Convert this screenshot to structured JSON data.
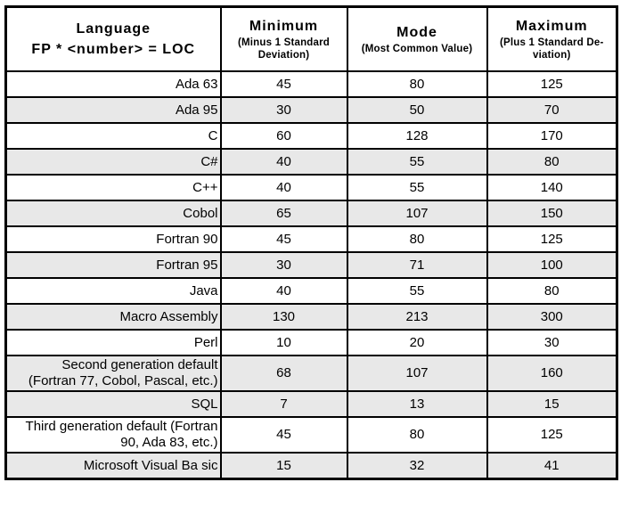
{
  "table": {
    "name": "function-points-to-loc-conversion-table",
    "header": {
      "cols": [
        {
          "title": "Language",
          "sub": "FP * <number> = LOC"
        },
        {
          "title": "Minimum",
          "sub": "(Minus 1 Standard Deviation)"
        },
        {
          "title": "Mode",
          "sub": "(Most Common Value)"
        },
        {
          "title": "Maximum",
          "sub": "(Plus 1 Standard De-viation)"
        }
      ]
    },
    "rows": [
      {
        "language": "Ada 63",
        "minimum": "45",
        "mode": "80",
        "maximum": "125",
        "shaded": false
      },
      {
        "language": "Ada 95",
        "minimum": "30",
        "mode": "50",
        "maximum": "70",
        "shaded": true
      },
      {
        "language": "C",
        "minimum": "60",
        "mode": "128",
        "maximum": "170",
        "shaded": false
      },
      {
        "language": "C#",
        "minimum": "40",
        "mode": "55",
        "maximum": "80",
        "shaded": true
      },
      {
        "language": "C++",
        "minimum": "40",
        "mode": "55",
        "maximum": "140",
        "shaded": false
      },
      {
        "language": "Cobol",
        "minimum": "65",
        "mode": "107",
        "maximum": "150",
        "shaded": true
      },
      {
        "language": "Fortran 90",
        "minimum": "45",
        "mode": "80",
        "maximum": "125",
        "shaded": false
      },
      {
        "language": "Fortran 95",
        "minimum": "30",
        "mode": "71",
        "maximum": "100",
        "shaded": true
      },
      {
        "language": "Java",
        "minimum": "40",
        "mode": "55",
        "maximum": "80",
        "shaded": false
      },
      {
        "language": "Macro Assembly",
        "minimum": "130",
        "mode": "213",
        "maximum": "300",
        "shaded": true
      },
      {
        "language": "Perl",
        "minimum": "10",
        "mode": "20",
        "maximum": "30",
        "shaded": false
      },
      {
        "language": "Second generation default (Fortran 77, Cobol, Pascal, etc.)",
        "minimum": "68",
        "mode": "107",
        "maximum": "160",
        "shaded": true
      },
      {
        "language": "SQL",
        "minimum": "7",
        "mode": "13",
        "maximum": "15",
        "shaded": true
      },
      {
        "language": "Third generation default (Fortran 90, Ada 83, etc.)",
        "minimum": "45",
        "mode": "80",
        "maximum": "125",
        "shaded": false
      },
      {
        "language": "Microsoft Visual Ba sic",
        "minimum": "15",
        "mode": "32",
        "maximum": "41",
        "shaded": true
      }
    ]
  },
  "colors": {
    "row_shade": "#e8e8e8",
    "border": "#000000",
    "background": "#ffffff",
    "text": "#000000"
  },
  "chart_data": {
    "type": "table",
    "title": "",
    "columns": [
      "Language FP * <number> = LOC",
      "Minimum (Minus 1 Standard Deviation)",
      "Mode (Most Common Value)",
      "Maximum (Plus 1 Standard De-viation)"
    ],
    "rows": [
      [
        "Ada 63",
        45,
        80,
        125
      ],
      [
        "Ada 95",
        30,
        50,
        70
      ],
      [
        "C",
        60,
        128,
        170
      ],
      [
        "C#",
        40,
        55,
        80
      ],
      [
        "C++",
        40,
        55,
        140
      ],
      [
        "Cobol",
        65,
        107,
        150
      ],
      [
        "Fortran 90",
        45,
        80,
        125
      ],
      [
        "Fortran 95",
        30,
        71,
        100
      ],
      [
        "Java",
        40,
        55,
        80
      ],
      [
        "Macro Assembly",
        130,
        213,
        300
      ],
      [
        "Perl",
        10,
        20,
        30
      ],
      [
        "Second generation default (Fortran 77, Cobol, Pascal, etc.)",
        68,
        107,
        160
      ],
      [
        "SQL",
        7,
        13,
        15
      ],
      [
        "Third generation default (Fortran 90, Ada 83, etc.)",
        45,
        80,
        125
      ],
      [
        "Microsoft Visual Ba sic",
        15,
        32,
        41
      ]
    ]
  }
}
